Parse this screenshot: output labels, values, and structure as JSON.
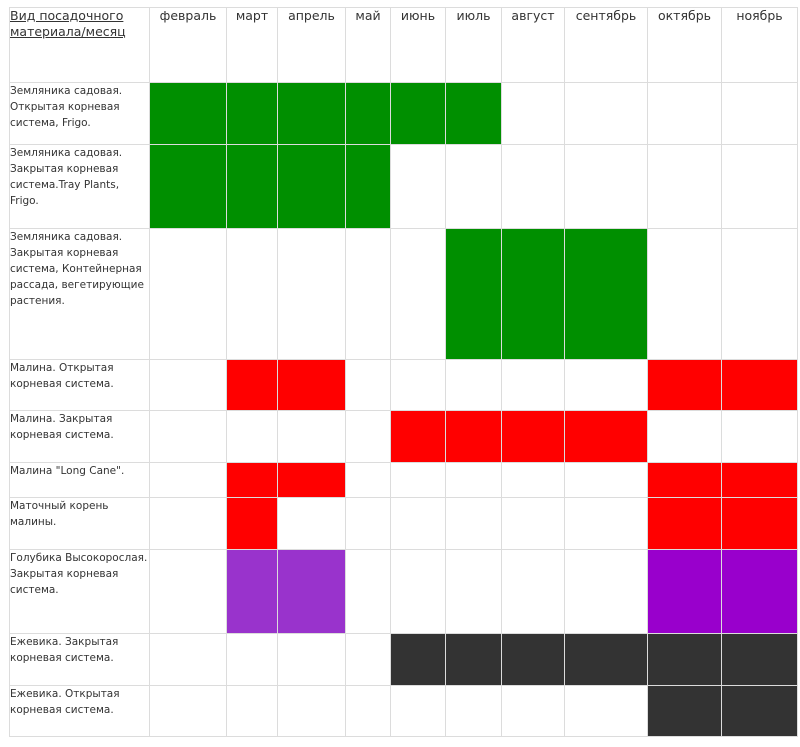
{
  "header": {
    "corner_label": "Вид посадочного материала/месяц",
    "months": [
      "февраль",
      "март",
      "апрель",
      "май",
      "июнь",
      "июль",
      "август",
      "сентябрь",
      "октябрь",
      "ноябрь"
    ]
  },
  "colors": {
    "g": "#008f00",
    "r": "#ff0000",
    "p": "#9933cc",
    "pp": "#9900cc",
    "d": "#333333"
  },
  "rows": [
    {
      "label": "Земляника садовая. Открытая корневая система, Frigo.",
      "cells": [
        "g",
        "g",
        "g",
        "g",
        "g",
        "g",
        "",
        "",
        "",
        ""
      ]
    },
    {
      "label": "Земляника садовая. Закрытая корневая система.Tray Plants, Frigo.",
      "cells": [
        "g",
        "g",
        "g",
        "g",
        "",
        "",
        "",
        "",
        "",
        ""
      ]
    },
    {
      "label": "Земляника садовая. Закрытая корневая система, Контейнерная рассада, вегетирующие растения.",
      "cells": [
        "",
        "",
        "",
        "",
        "",
        "g",
        "g",
        "g",
        "",
        ""
      ]
    },
    {
      "label": "Малина. Открытая корневая система.",
      "cells": [
        "",
        "r",
        "r",
        "",
        "",
        "",
        "",
        "",
        "r",
        "r"
      ]
    },
    {
      "label": "Малина. Закрытая корневая система.",
      "cells": [
        "",
        "",
        "",
        "",
        "r",
        "r",
        "r",
        "r",
        "",
        ""
      ]
    },
    {
      "label": "Малина \"Long Cane\".",
      "cells": [
        "",
        "r",
        "r",
        "",
        "",
        "",
        "",
        "",
        "r",
        "r"
      ]
    },
    {
      "label": "Маточный корень малины.",
      "cells": [
        "",
        "r",
        "",
        "",
        "",
        "",
        "",
        "",
        "r",
        "r"
      ]
    },
    {
      "label": "Голубика Высокорослая. Закрытая корневая система.",
      "cells": [
        "",
        "p",
        "p",
        "",
        "",
        "",
        "",
        "",
        "pp",
        "pp"
      ]
    },
    {
      "label": "Ежевика. Закрытая корневая система.",
      "cells": [
        "",
        "",
        "",
        "",
        "d",
        "d",
        "d",
        "d",
        "d",
        "d"
      ]
    },
    {
      "label": "Ежевика. Открытая корневая система.",
      "cells": [
        "",
        "",
        "",
        "",
        "",
        "",
        "",
        "",
        "d",
        "d"
      ]
    }
  ]
}
